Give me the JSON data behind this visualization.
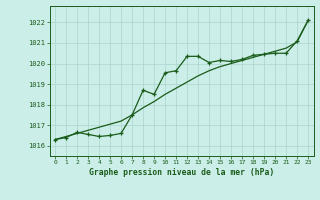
{
  "title": "Graphe pression niveau de la mer (hPa)",
  "bg_color": "#cceee8",
  "grid_color": "#aad4cc",
  "line_color": "#1a5c1a",
  "x_ticks": [
    0,
    1,
    2,
    3,
    4,
    5,
    6,
    7,
    8,
    9,
    10,
    11,
    12,
    13,
    14,
    15,
    16,
    17,
    18,
    19,
    20,
    21,
    22,
    23
  ],
  "y_ticks": [
    1016,
    1017,
    1018,
    1019,
    1020,
    1021,
    1022
  ],
  "ylim": [
    1015.5,
    1022.8
  ],
  "xlim": [
    -0.5,
    23.5
  ],
  "series_smooth": [
    1016.3,
    1016.45,
    1016.6,
    1016.75,
    1016.9,
    1017.05,
    1017.2,
    1017.5,
    1017.85,
    1018.15,
    1018.5,
    1018.8,
    1019.1,
    1019.4,
    1019.65,
    1019.85,
    1020.0,
    1020.15,
    1020.3,
    1020.45,
    1020.6,
    1020.75,
    1021.05,
    1022.1
  ],
  "series_jagged": [
    1016.3,
    1016.4,
    1016.65,
    1016.55,
    1016.45,
    1016.5,
    1016.6,
    1017.5,
    1018.7,
    1018.5,
    1019.55,
    1019.65,
    1020.35,
    1020.35,
    1020.05,
    1020.15,
    1020.1,
    1020.2,
    1020.4,
    1020.45,
    1020.5,
    1020.5,
    1021.1,
    1022.1
  ]
}
